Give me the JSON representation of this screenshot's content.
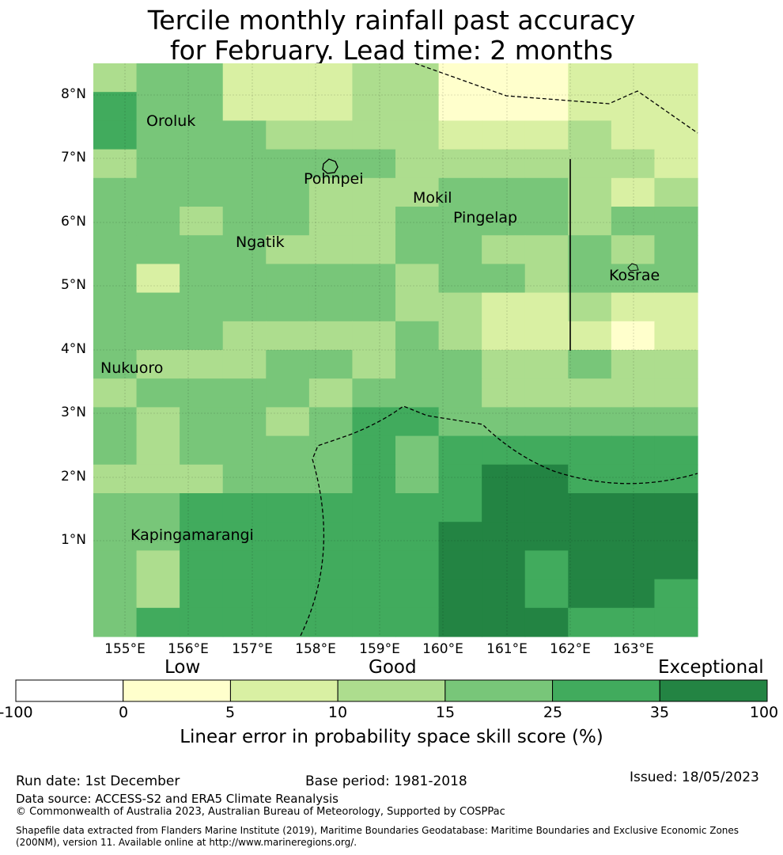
{
  "title": {
    "line1": "Tercile monthly rainfall past accuracy",
    "line2": "for February. Lead time: 2 months"
  },
  "axes": {
    "lat_labels": [
      "8°N",
      "7°N",
      "6°N",
      "5°N",
      "4°N",
      "3°N",
      "2°N",
      "1°N"
    ],
    "lon_labels": [
      "155°E",
      "156°E",
      "157°E",
      "158°E",
      "159°E",
      "160°E",
      "161°E",
      "162°E",
      "163°E"
    ]
  },
  "places": [
    {
      "name": "Oroluk"
    },
    {
      "name": "Pohnpei"
    },
    {
      "name": "Mokil"
    },
    {
      "name": "Pingelap"
    },
    {
      "name": "Ngatik"
    },
    {
      "name": "Kosrae"
    },
    {
      "name": "Nukuoro"
    },
    {
      "name": "Kapingamarangi"
    }
  ],
  "grid": {
    "colors": [
      "#ffffff",
      "#ffffcc",
      "#d9f0a3",
      "#addd8e",
      "#78c679",
      "#41ab5d",
      "#238443"
    ],
    "rows": [
      "34422233111222",
      "54422233111222",
      "54443333222322",
      "34444443333332",
      "44444333444323",
      "44344334444344",
      "44443334433434",
      "42444443443444",
      "44444443322322",
      "44433334322212",
      "43334434433433",
      "34444344433333",
      "43443455444444",
      "43444454555555",
      "33344454566555",
      "44555555566666",
      "44555555666666",
      "43555555665666",
      "43555555665665",
      "45555555666555"
    ]
  },
  "colorbar": {
    "categories": [
      "Low",
      "Good",
      "Exceptional"
    ],
    "ticks": [
      "-100",
      "0",
      "5",
      "10",
      "15",
      "25",
      "35",
      "100"
    ],
    "colors": [
      "#ffffff",
      "#ffffcc",
      "#d9f0a3",
      "#addd8e",
      "#78c679",
      "#41ab5d",
      "#238443"
    ],
    "label": "Linear error in probability space skill score (%)"
  },
  "footer": {
    "run_date": "Run date: 1st December",
    "base_period": "Base period: 1981-2018",
    "issued": "Issued: 18/05/2023",
    "data_source": "Data source: ACCESS-S2 and ERA5 Climate Reanalysis",
    "copyright": "© Commonwealth of Australia 2023, Australian Bureau of Meteorology, Supported by COSPPac",
    "shapefile_line1": "Shapefile data extracted from Flanders Marine Institute (2019), Maritime Boundaries Geodatabase: Maritime Boundaries and Exclusive Economic Zones",
    "shapefile_line2": "(200NM), version 11. Available online at http://www.marineregions.org/."
  }
}
